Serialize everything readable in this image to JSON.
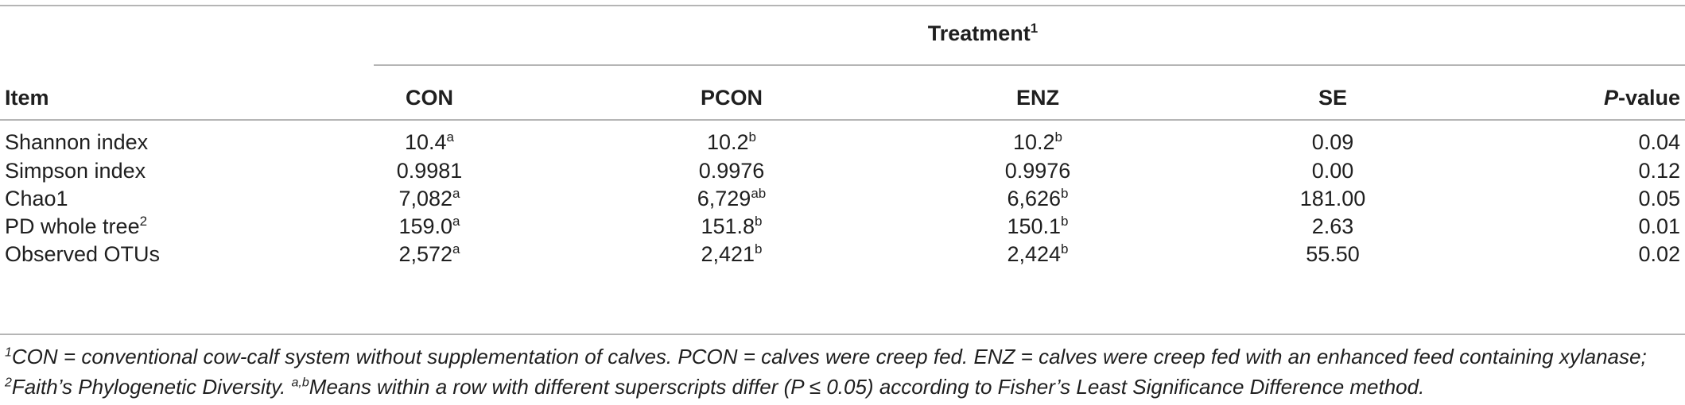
{
  "table": {
    "group_header": "Treatment",
    "group_header_sup": "1",
    "headers": {
      "item": "Item",
      "con": "CON",
      "pcon": "PCON",
      "enz": "ENZ",
      "se": "SE",
      "p_italic": "P",
      "p_rest": "-value"
    },
    "rows": [
      {
        "item": "Shannon index",
        "item_sup": "",
        "con": "10.4",
        "con_sup": "a",
        "pcon": "10.2",
        "pcon_sup": "b",
        "enz": "10.2",
        "enz_sup": "b",
        "se": "0.09",
        "p": "0.04"
      },
      {
        "item": "Simpson index",
        "item_sup": "",
        "con": "0.9981",
        "con_sup": "",
        "pcon": "0.9976",
        "pcon_sup": "",
        "enz": "0.9976",
        "enz_sup": "",
        "se": "0.00",
        "p": "0.12"
      },
      {
        "item": "Chao1",
        "item_sup": "",
        "con": "7,082",
        "con_sup": "a",
        "pcon": "6,729",
        "pcon_sup": "ab",
        "enz": "6,626",
        "enz_sup": "b",
        "se": "181.00",
        "p": "0.05"
      },
      {
        "item": "PD whole tree",
        "item_sup": "2",
        "con": "159.0",
        "con_sup": "a",
        "pcon": "151.8",
        "pcon_sup": "b",
        "enz": "150.1",
        "enz_sup": "b",
        "se": "2.63",
        "p": "0.01"
      },
      {
        "item": "Observed OTUs",
        "item_sup": "",
        "con": "2,572",
        "con_sup": "a",
        "pcon": "2,421",
        "pcon_sup": "b",
        "enz": "2,424",
        "enz_sup": "b",
        "se": "55.50",
        "p": "0.02"
      }
    ]
  },
  "footnote": {
    "sup1": "1",
    "text1": "CON = conventional cow-calf system without supplementation of calves. PCON = calves were creep fed. ENZ = calves were creep fed with an enhanced feed containing xylanase; ",
    "sup2": "2",
    "text2": "Faith’s Phylogenetic Diversity. ",
    "sup3": "a,b",
    "text3": "Means within a row with different superscripts differ (P ≤ 0.05) according to Fisher’s Least Significance Difference method."
  },
  "colors": {
    "rule": "#b5b5b5",
    "text": "#1f1f1f"
  }
}
